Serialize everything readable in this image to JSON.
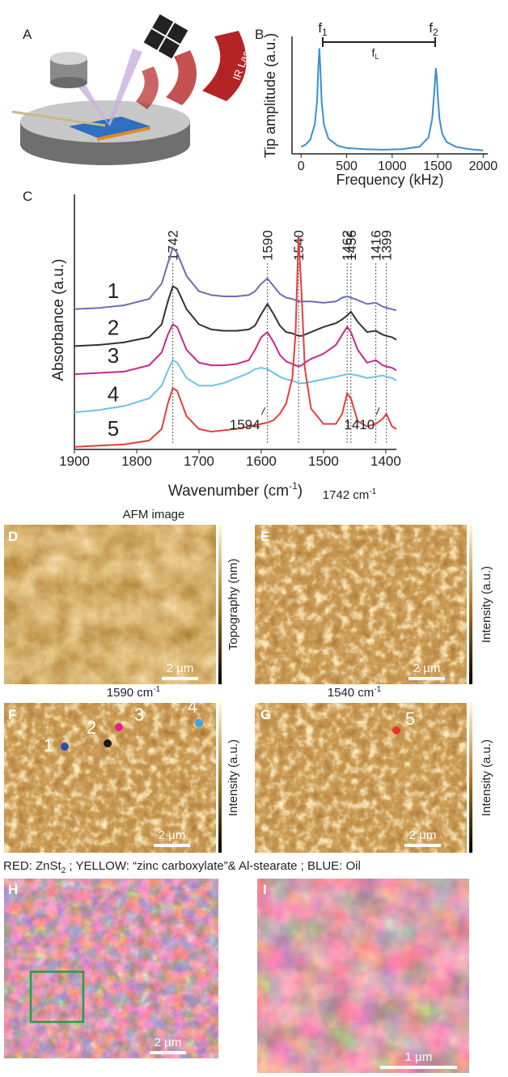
{
  "panel_letters": [
    "A",
    "B",
    "C",
    "D",
    "E",
    "F",
    "G",
    "H",
    "I"
  ],
  "schematic": {
    "laser_label": "IR Laser"
  },
  "chart_data": [
    {
      "type": "line",
      "ylabel": "Tip amplitude (a.u.)",
      "xlabel": "Frequency (kHz)",
      "annotations": [
        {
          "text": "f",
          "sub": "1"
        },
        {
          "text": "f",
          "sub": "2"
        },
        {
          "text": "f",
          "sub": "L"
        }
      ],
      "x": [
        0,
        50,
        100,
        150,
        175,
        190,
        200,
        210,
        225,
        250,
        300,
        400,
        500,
        700,
        900,
        1100,
        1300,
        1400,
        1440,
        1460,
        1480,
        1490,
        1500,
        1520,
        1550,
        1600,
        1700,
        1850,
        2000
      ],
      "values": [
        0.06,
        0.08,
        0.12,
        0.25,
        0.45,
        0.75,
        0.9,
        0.75,
        0.45,
        0.25,
        0.13,
        0.07,
        0.05,
        0.04,
        0.035,
        0.04,
        0.06,
        0.14,
        0.3,
        0.5,
        0.73,
        0.65,
        0.5,
        0.3,
        0.17,
        0.1,
        0.06,
        0.04,
        0.03
      ],
      "color": "#3b8fd1",
      "xlim": [
        -100,
        2050
      ],
      "ylim": [
        0,
        1
      ],
      "xticks": [
        0,
        500,
        1000,
        1500,
        2000
      ]
    },
    {
      "type": "line",
      "ylabel": "Absorbance (a.u.)",
      "xlabel": "Wavenumber (cm",
      "xlabel_sup": "-1",
      "xlabel_end": ")",
      "x": [
        1900,
        1860,
        1820,
        1780,
        1760,
        1750,
        1742,
        1735,
        1720,
        1700,
        1680,
        1660,
        1640,
        1620,
        1610,
        1600,
        1590,
        1580,
        1570,
        1560,
        1550,
        1545,
        1540,
        1535,
        1530,
        1520,
        1500,
        1480,
        1470,
        1462,
        1456,
        1445,
        1430,
        1416,
        1405,
        1399,
        1390,
        1383
      ],
      "series": [
        {
          "name": "1",
          "color": "#6a6fb0",
          "values": [
            5.5,
            5.55,
            5.65,
            5.9,
            6.5,
            7.3,
            7.9,
            7.7,
            6.8,
            6.2,
            6.05,
            6.0,
            6.0,
            6.05,
            6.2,
            6.5,
            6.7,
            6.4,
            6.1,
            5.95,
            5.9,
            5.85,
            5.8,
            5.8,
            5.8,
            5.8,
            5.75,
            5.8,
            5.95,
            6.0,
            5.95,
            5.85,
            5.7,
            5.75,
            5.6,
            5.55,
            5.5,
            5.45
          ]
        },
        {
          "name": "2",
          "color": "#333333",
          "values": [
            4.05,
            4.1,
            4.2,
            4.4,
            4.9,
            5.8,
            6.4,
            6.3,
            5.5,
            4.9,
            4.7,
            4.65,
            4.65,
            4.7,
            4.85,
            5.3,
            5.7,
            5.3,
            4.85,
            4.6,
            4.55,
            4.5,
            4.45,
            4.45,
            4.5,
            4.6,
            4.8,
            4.95,
            5.1,
            5.25,
            5.4,
            5.0,
            4.6,
            4.65,
            4.5,
            4.45,
            4.4,
            4.3
          ]
        },
        {
          "name": "3",
          "color": "#c42a8c",
          "values": [
            2.95,
            3.0,
            3.05,
            3.3,
            3.8,
            4.5,
            4.9,
            4.8,
            3.9,
            3.4,
            3.3,
            3.3,
            3.35,
            3.5,
            3.9,
            4.4,
            4.6,
            4.2,
            3.7,
            3.45,
            3.35,
            3.3,
            3.25,
            3.3,
            3.4,
            3.55,
            3.75,
            4.1,
            4.5,
            4.8,
            4.6,
            3.9,
            3.4,
            3.5,
            3.3,
            3.25,
            3.2,
            3.1
          ]
        },
        {
          "name": "4",
          "color": "#6cc3e0",
          "values": [
            1.45,
            1.55,
            1.7,
            2.0,
            2.5,
            3.1,
            3.5,
            3.4,
            2.8,
            2.5,
            2.5,
            2.6,
            2.8,
            3.0,
            3.15,
            3.2,
            3.15,
            3.0,
            2.85,
            2.75,
            2.7,
            2.65,
            2.6,
            2.6,
            2.6,
            2.65,
            2.75,
            2.85,
            2.9,
            2.95,
            2.95,
            2.9,
            2.8,
            2.85,
            2.9,
            2.85,
            2.8,
            2.7
          ]
        },
        {
          "name": "5",
          "color": "#e0403c",
          "values": [
            0.1,
            0.15,
            0.2,
            0.35,
            0.8,
            1.8,
            2.4,
            2.3,
            1.3,
            0.8,
            0.7,
            0.75,
            0.8,
            0.9,
            0.95,
            1.0,
            1.05,
            1.15,
            1.4,
            1.8,
            2.8,
            4.5,
            8.4,
            6.0,
            3.2,
            1.6,
            1.0,
            1.0,
            1.4,
            2.2,
            2.0,
            1.1,
            0.9,
            1.0,
            1.2,
            1.4,
            0.9,
            0.8
          ]
        }
      ],
      "peak_lines": [
        1742,
        1590,
        1540,
        1462,
        1456,
        1416,
        1399
      ],
      "peak_annotations": [
        1594,
        1410
      ],
      "xlim": [
        1900,
        1383
      ],
      "ylim": [
        0,
        10
      ],
      "xticks": [
        1900,
        1800,
        1700,
        1600,
        1500,
        1400
      ]
    }
  ],
  "maps": [
    {
      "title": "AFM image",
      "colorbar_label": "Topography (nm)",
      "scale_bar": "2 µm"
    },
    {
      "title": "1742 cm",
      "title_sup": "-1",
      "colorbar_label": "Intensity (a.u.)",
      "scale_bar": "2 µm"
    },
    {
      "title": "1590 cm",
      "title_sup": "-1",
      "colorbar_label": "Intensity (a.u.)",
      "scale_bar": "2 µm",
      "points": [
        "1",
        "2",
        "3",
        "4"
      ]
    },
    {
      "title": "1540 cm",
      "title_sup": "-1",
      "colorbar_label": "Intensity (a.u.)",
      "scale_bar": "2 µm",
      "points": [
        "5"
      ]
    },
    {
      "scale_bar": "2 µm"
    },
    {
      "scale_bar": "1 µm"
    }
  ],
  "legend": [
    "RED: ZnSt",
    "2",
    " ; YELLOW: “zinc carboxylate”& Al-stearate ; BLUE: Oil"
  ]
}
